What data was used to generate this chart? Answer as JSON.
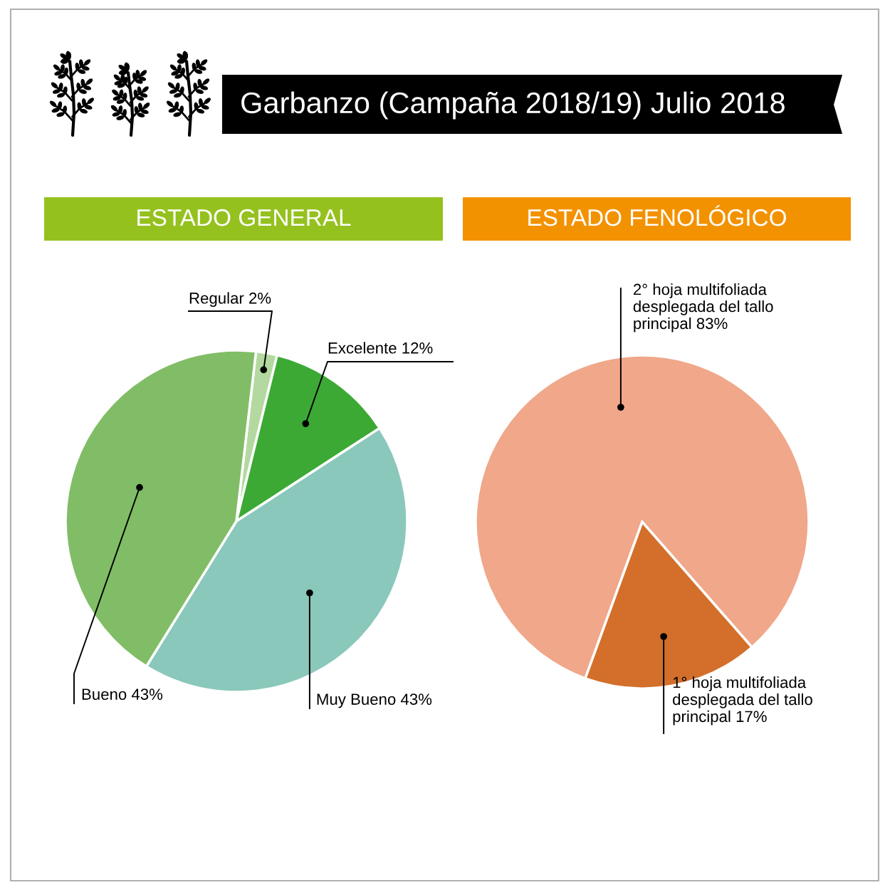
{
  "chart_data": [
    {
      "type": "pie",
      "title": "Garbanzo (Campaña 2018/19) Julio 2018",
      "subtitle": "ESTADO GENERAL",
      "categories": [
        "Regular",
        "Excelente",
        "Muy Bueno",
        "Bueno"
      ],
      "values": [
        2,
        12,
        43,
        43
      ],
      "value_labels": [
        "2%",
        "12%",
        "43%",
        "43%"
      ],
      "colors": [
        "#b3d9a0",
        "#3ca935",
        "#8ac8bb",
        "#81bd66"
      ]
    },
    {
      "type": "pie",
      "subtitle": "ESTADO FENOLÓGICO",
      "categories": [
        "2° hoja multifoliada\ndesplegada del tallo\nprincipal",
        "1° hoja multifoliada\ndesplegada del tallo\nprincipal"
      ],
      "values": [
        83,
        17
      ],
      "value_labels": [
        "83%",
        "17%"
      ],
      "colors": [
        "#f0a78a",
        "#d36f2b"
      ]
    }
  ]
}
